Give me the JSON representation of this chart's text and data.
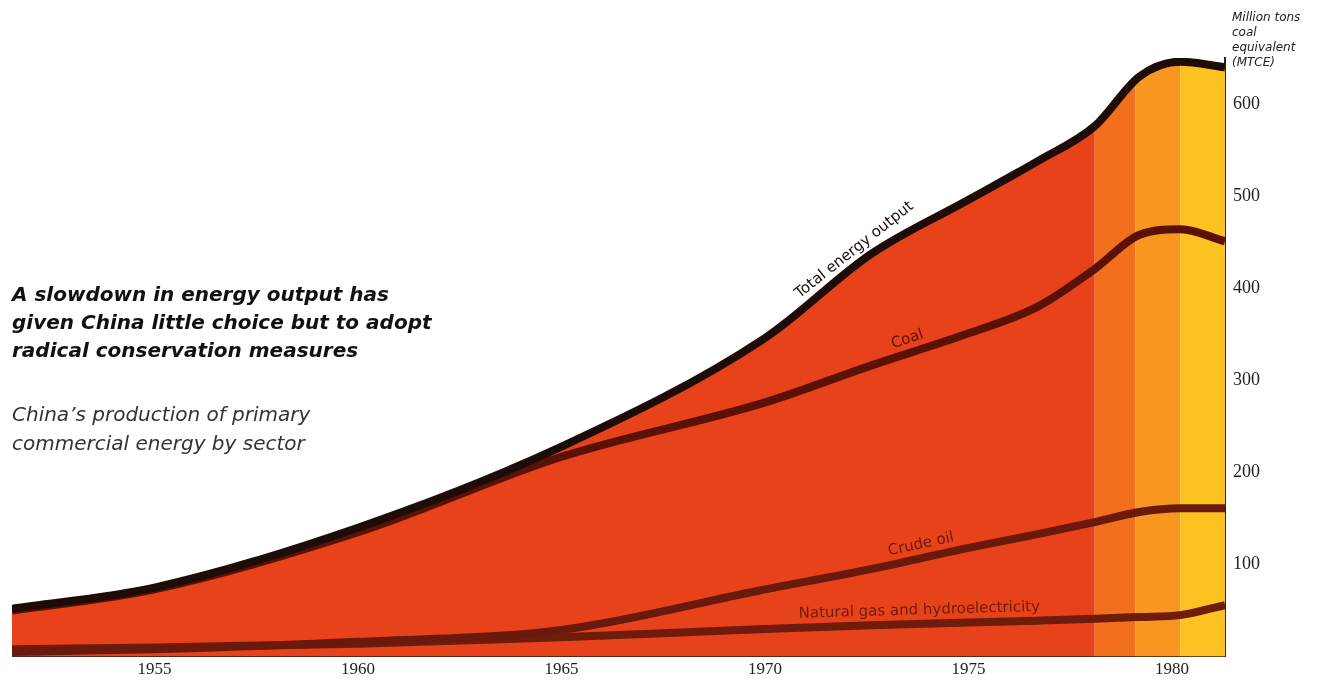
{
  "chart_data": {
    "type": "line",
    "title": "A slowdown in energy output has given China little choice but to adopt radical conservation measures",
    "subtitle": "China’s production of primary commercial energy by sector",
    "ylabel": "Million tons coal equivalent (MTCE)",
    "x": [
      1951.5,
      1955,
      1960,
      1965,
      1970,
      1972.6,
      1975,
      1976.7,
      1978.1,
      1979.2,
      1980.2,
      1981.3
    ],
    "series": [
      {
        "name": "Total energy output",
        "color": "#1e0c08",
        "values": [
          52,
          75,
          140,
          228,
          346,
          437,
          496,
          538,
          576,
          630,
          646,
          640
        ]
      },
      {
        "name": "Coal",
        "color": "#5a1208",
        "values": [
          50,
          73,
          135,
          217,
          276,
          316,
          351,
          380,
          421,
          458,
          464,
          451
        ]
      },
      {
        "name": "Crude oil",
        "color": "#6a1a0c",
        "values": [
          5,
          8,
          16,
          29,
          73,
          95,
          118,
          133,
          146,
          157,
          161,
          161
        ]
      },
      {
        "name": "Natural gas and hydroelectricity",
        "color": "#6e1c0c",
        "values": [
          8,
          10,
          14,
          21,
          30,
          34,
          37,
          39,
          41,
          43,
          45,
          56
        ]
      }
    ],
    "bands": [
      {
        "axis": "x",
        "from": 1951.5,
        "to": 1978.1,
        "color": "#e8421b"
      },
      {
        "axis": "x",
        "from": 1978.1,
        "to": 1979.1,
        "color": "#f26f1d"
      },
      {
        "axis": "x",
        "from": 1979.1,
        "to": 1980.2,
        "color": "#f8971f"
      },
      {
        "axis": "x",
        "from": 1980.2,
        "to": 1981.3,
        "color": "#fcc222"
      }
    ],
    "xlim": [
      1951.5,
      1981.3
    ],
    "xticks": [
      1955,
      1960,
      1965,
      1970,
      1975,
      1980
    ],
    "ylim": [
      0,
      650
    ],
    "yticks": [
      100,
      200,
      300,
      400,
      500,
      600
    ],
    "grid": false,
    "legend": false,
    "marker": "none",
    "line_style": "solid"
  }
}
